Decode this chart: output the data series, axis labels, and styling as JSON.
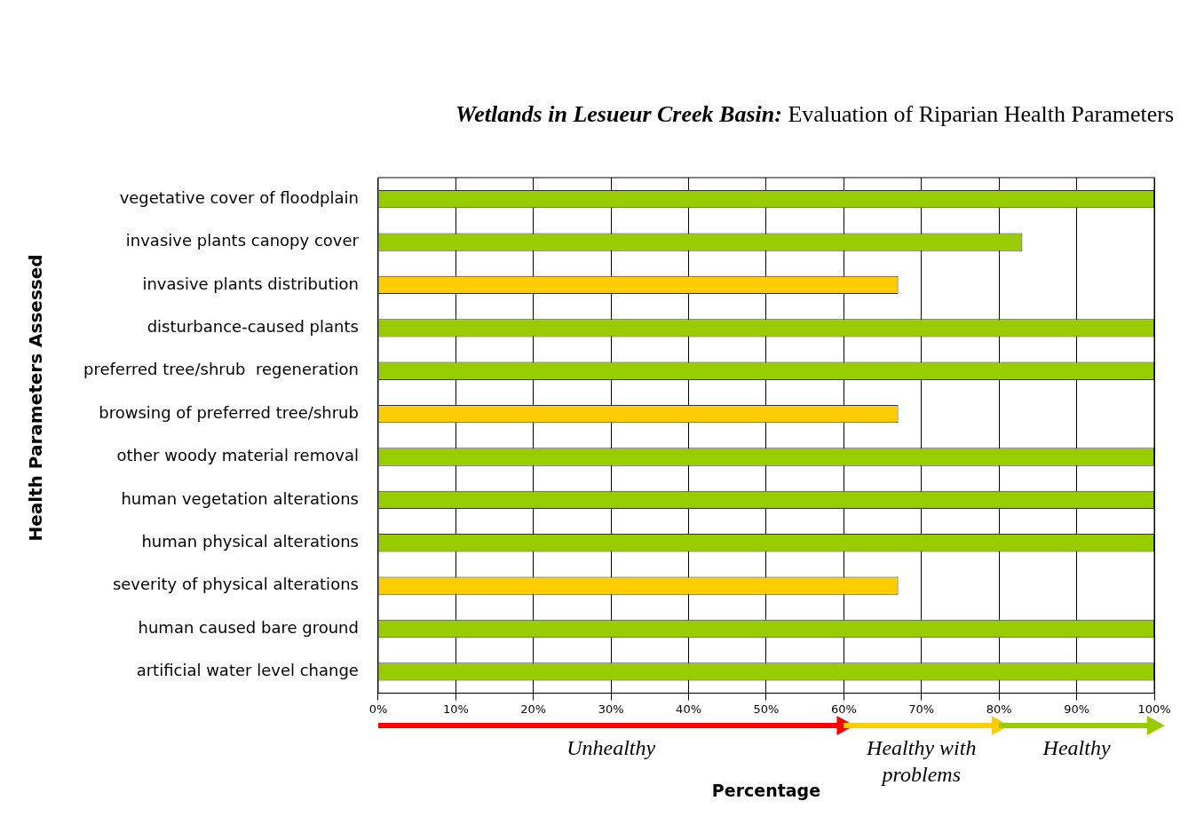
{
  "chart_data": {
    "type": "bar",
    "orientation": "horizontal",
    "title": "Wetlands in Lesueur Creek Basin: Evaluation of Riparian Health Parameters",
    "xlabel": "Percentage",
    "ylabel": "Health Parameters Assessed",
    "categories": [
      "vegetative cover of floodplain",
      "invasive plants canopy cover",
      "invasive plants distribution",
      "disturbance-caused plants",
      "preferred tree/shrub  regeneration",
      "browsing of preferred tree/shrub",
      "other woody material removal",
      "human vegetation alterations",
      "human physical alterations",
      "severity of physical alterations",
      "human caused bare ground",
      "artificial water level change"
    ],
    "values": [
      100,
      83,
      67,
      100,
      100,
      67,
      100,
      100,
      100,
      67,
      100,
      100
    ],
    "colors": [
      "#99cc00",
      "#99cc00",
      "#ffcc00",
      "#99cc00",
      "#99cc00",
      "#ffcc00",
      "#99cc00",
      "#99cc00",
      "#99cc00",
      "#ffcc00",
      "#99cc00",
      "#99cc00"
    ],
    "xlim": [
      0,
      100
    ],
    "xticks": [
      {
        "value": 0,
        "label": "0%"
      },
      {
        "value": 10,
        "label": "10%"
      },
      {
        "value": 20,
        "label": "20%"
      },
      {
        "value": 30,
        "label": "30%"
      },
      {
        "value": 40,
        "label": "40%"
      },
      {
        "value": 50,
        "label": "50%"
      },
      {
        "value": 60,
        "label": "60%"
      },
      {
        "value": 70,
        "label": "70%"
      },
      {
        "value": 80,
        "label": "80%"
      },
      {
        "value": 90,
        "label": "90%"
      },
      {
        "value": 100,
        "label": "100%"
      }
    ],
    "grid": "x",
    "legend": false,
    "annotations": [
      "Unhealthy",
      "Healthy with problems",
      "Healthy"
    ]
  }
}
